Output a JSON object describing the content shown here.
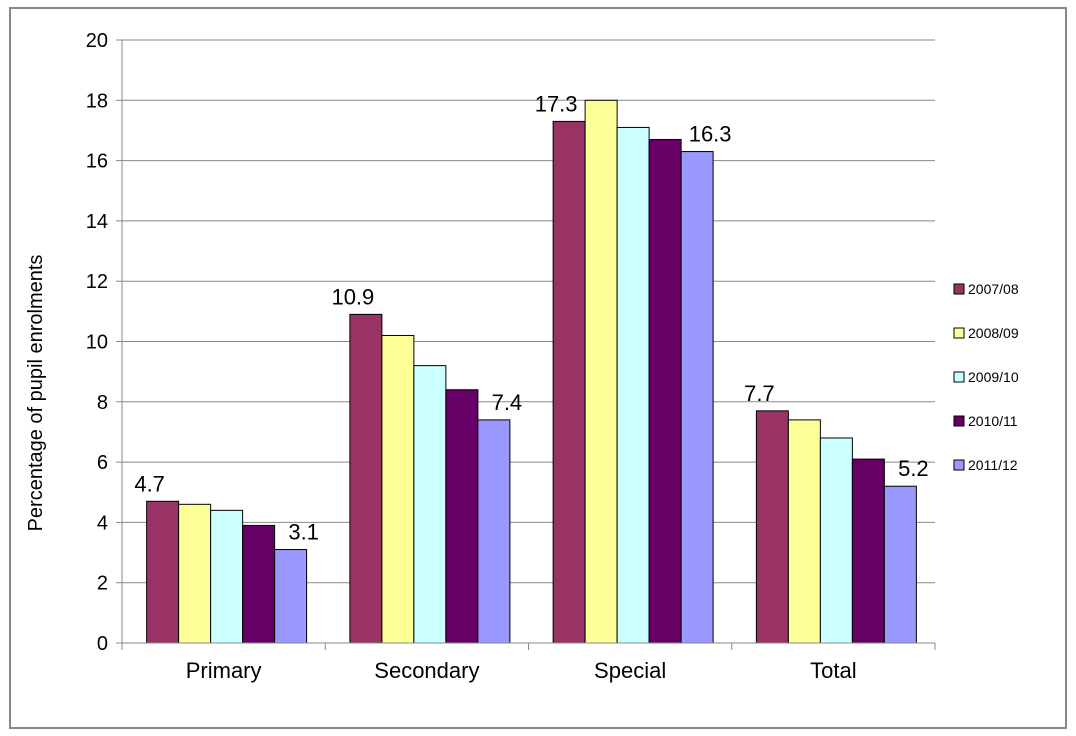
{
  "chart_data": {
    "type": "bar",
    "categories": [
      "Primary",
      "Secondary",
      "Special",
      "Total"
    ],
    "series": [
      {
        "name": "2007/08",
        "color": "#993366",
        "values": [
          4.7,
          10.9,
          17.3,
          7.7
        ]
      },
      {
        "name": "2008/09",
        "color": "#FFFF99",
        "values": [
          4.6,
          10.2,
          18.0,
          7.4
        ]
      },
      {
        "name": "2009/10",
        "color": "#CCFFFF",
        "values": [
          4.4,
          9.2,
          17.1,
          6.8
        ]
      },
      {
        "name": "2010/11",
        "color": "#660066",
        "values": [
          3.9,
          8.4,
          16.7,
          6.1
        ]
      },
      {
        "name": "2011/12",
        "color": "#9999FF",
        "values": [
          3.1,
          7.4,
          16.3,
          5.2
        ]
      }
    ],
    "data_labels": [
      {
        "category": 0,
        "series": 0,
        "text": "4.7"
      },
      {
        "category": 0,
        "series": 4,
        "text": "3.1"
      },
      {
        "category": 1,
        "series": 0,
        "text": "10.9"
      },
      {
        "category": 1,
        "series": 4,
        "text": "7.4"
      },
      {
        "category": 2,
        "series": 0,
        "text": "17.3"
      },
      {
        "category": 2,
        "series": 4,
        "text": "16.3"
      },
      {
        "category": 3,
        "series": 0,
        "text": "7.7"
      },
      {
        "category": 3,
        "series": 4,
        "text": "5.2"
      }
    ],
    "ylabel": "Percentage of pupil enrolments",
    "xlabel": "",
    "ylim": [
      0,
      20
    ],
    "yticks": [
      0,
      2,
      4,
      6,
      8,
      10,
      12,
      14,
      16,
      18,
      20
    ],
    "grid": "horizontal",
    "legend_position": "right"
  }
}
